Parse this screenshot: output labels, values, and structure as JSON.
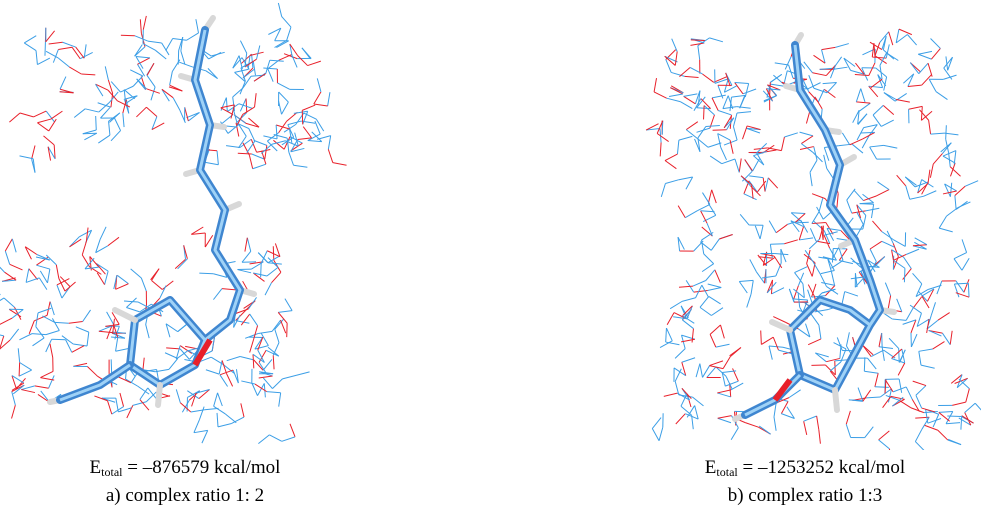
{
  "panels": [
    {
      "energy": {
        "symbol": "E",
        "subscript": "total",
        "value": "= –876579 kcal/mol"
      },
      "caption": "a) complex ratio 1: 2"
    },
    {
      "energy": {
        "symbol": "E",
        "subscript": "total",
        "value": "= –1253252 kcal/mol"
      },
      "caption": "b) complex ratio 1:3"
    }
  ]
}
